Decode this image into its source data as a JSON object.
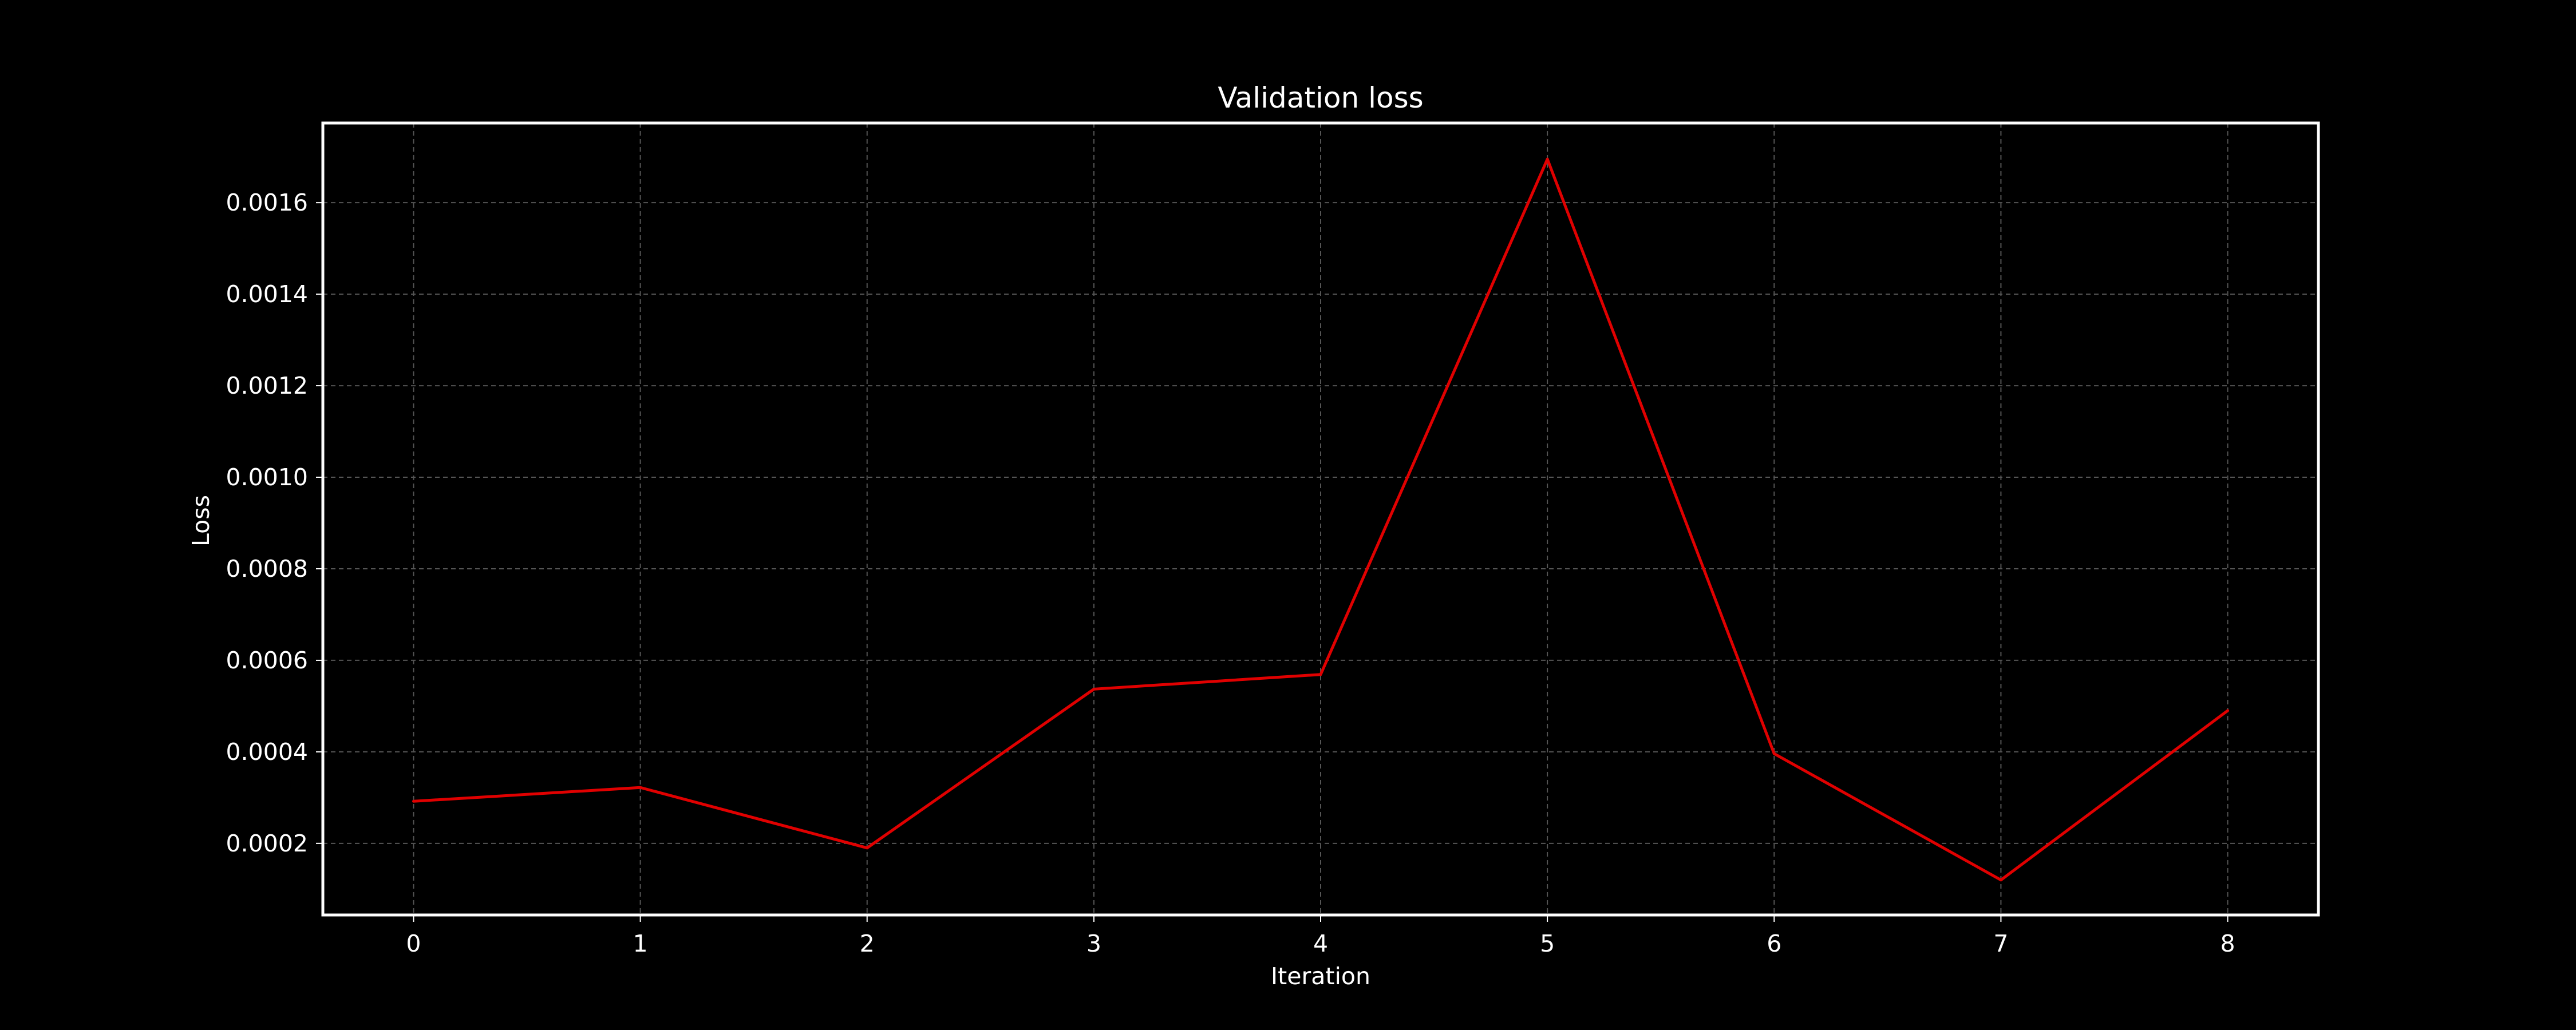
{
  "chart_data": {
    "type": "line",
    "title": "Validation loss",
    "xlabel": "Iteration",
    "ylabel": "Loss",
    "x": [
      0,
      1,
      2,
      3,
      4,
      5,
      6,
      7,
      8
    ],
    "series": [
      {
        "values": [
          0.000292,
          0.000322,
          0.00019,
          0.000537,
          0.000569,
          0.001695,
          0.000396,
          0.00012,
          0.00049
        ]
      }
    ],
    "xticks": [
      "0",
      "1",
      "2",
      "3",
      "4",
      "5",
      "6",
      "7",
      "8"
    ],
    "yticks": [
      "0.0002",
      "0.0004",
      "0.0006",
      "0.0008",
      "0.0010",
      "0.0012",
      "0.0014",
      "0.0016"
    ],
    "xlim": [
      -0.4,
      8.4
    ],
    "ylim": [
      4.35e-05,
      0.001774
    ],
    "grid": true,
    "grid_style": "dashed",
    "colors": {
      "background": "#000000",
      "line": "#e00000",
      "axes": "#ffffff",
      "grid": "#555555",
      "text": "#ffffff"
    }
  }
}
